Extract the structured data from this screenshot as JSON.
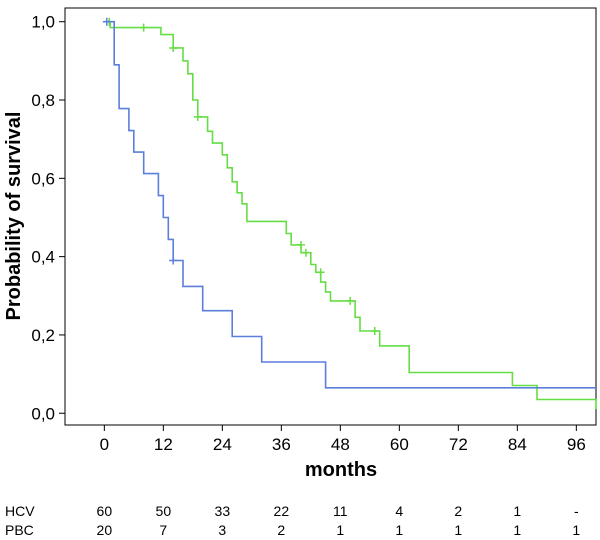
{
  "chart_data": {
    "type": "line",
    "title": "",
    "xlabel": "months",
    "ylabel": "Probability of survival",
    "xlim": [
      -8,
      100
    ],
    "ylim": [
      -0.03,
      1.035
    ],
    "x_ticks": [
      0,
      12,
      24,
      36,
      48,
      60,
      72,
      84,
      96
    ],
    "x_tick_labels": [
      "0",
      "12",
      "24",
      "36",
      "48",
      "60",
      "72",
      "84",
      "96"
    ],
    "y_ticks": [
      0,
      0.2,
      0.4,
      0.6,
      0.8,
      1.0
    ],
    "y_tick_labels": [
      "0,0",
      "0,2",
      "0,4",
      "0,6",
      "0,8",
      "1,0"
    ],
    "grid": false,
    "series": [
      {
        "risk_label": "HCV",
        "color": "#66dd44",
        "steps": [
          [
            0,
            1.0
          ],
          [
            1.2,
            0.985
          ],
          [
            11.5,
            0.967
          ],
          [
            14,
            0.933
          ],
          [
            16,
            0.9
          ],
          [
            17,
            0.867
          ],
          [
            18,
            0.8
          ],
          [
            19,
            0.757
          ],
          [
            21,
            0.72
          ],
          [
            22,
            0.69
          ],
          [
            24,
            0.66
          ],
          [
            25,
            0.627
          ],
          [
            26,
            0.591
          ],
          [
            27,
            0.563
          ],
          [
            28,
            0.535
          ],
          [
            29,
            0.49
          ],
          [
            37,
            0.459
          ],
          [
            38,
            0.43
          ],
          [
            40,
            0.41
          ],
          [
            42,
            0.38
          ],
          [
            43,
            0.36
          ],
          [
            44,
            0.335
          ],
          [
            45,
            0.31
          ],
          [
            46,
            0.287
          ],
          [
            51,
            0.245
          ],
          [
            52,
            0.21
          ],
          [
            56,
            0.172
          ],
          [
            62,
            0.104
          ],
          [
            83,
            0.071
          ],
          [
            88,
            0.035
          ],
          [
            109,
            0.01
          ]
        ],
        "end": 112,
        "censor": [
          [
            1,
            1.0
          ],
          [
            8,
            0.985
          ],
          [
            14,
            0.933
          ],
          [
            19,
            0.757
          ],
          [
            40,
            0.43
          ],
          [
            41,
            0.41
          ],
          [
            44,
            0.36
          ],
          [
            50,
            0.287
          ],
          [
            55,
            0.21
          ]
        ]
      },
      {
        "risk_label": "PBC",
        "color": "#5b7fdb",
        "steps": [
          [
            0,
            1.0
          ],
          [
            2,
            0.89
          ],
          [
            3,
            0.778
          ],
          [
            5,
            0.722
          ],
          [
            6,
            0.667
          ],
          [
            8,
            0.612
          ],
          [
            11,
            0.556
          ],
          [
            12,
            0.5
          ],
          [
            13,
            0.444
          ],
          [
            14,
            0.39
          ],
          [
            16,
            0.324
          ],
          [
            20,
            0.262
          ],
          [
            26,
            0.196
          ],
          [
            32,
            0.131
          ],
          [
            45,
            0.065
          ]
        ],
        "end": 120,
        "censor": [
          [
            0.5,
            1.0
          ],
          [
            14,
            0.39
          ]
        ]
      }
    ],
    "at_risk_header": [
      "0",
      "12",
      "24",
      "36",
      "48",
      "60",
      "72",
      "84",
      "96"
    ],
    "at_risk": [
      {
        "label": "HCV",
        "values": [
          "60",
          "50",
          "33",
          "22",
          "11",
          "4",
          "2",
          "1",
          "-"
        ]
      },
      {
        "label": "PBC",
        "values": [
          "20",
          "7",
          "3",
          "2",
          "1",
          "1",
          "1",
          "1",
          "1"
        ]
      }
    ]
  }
}
